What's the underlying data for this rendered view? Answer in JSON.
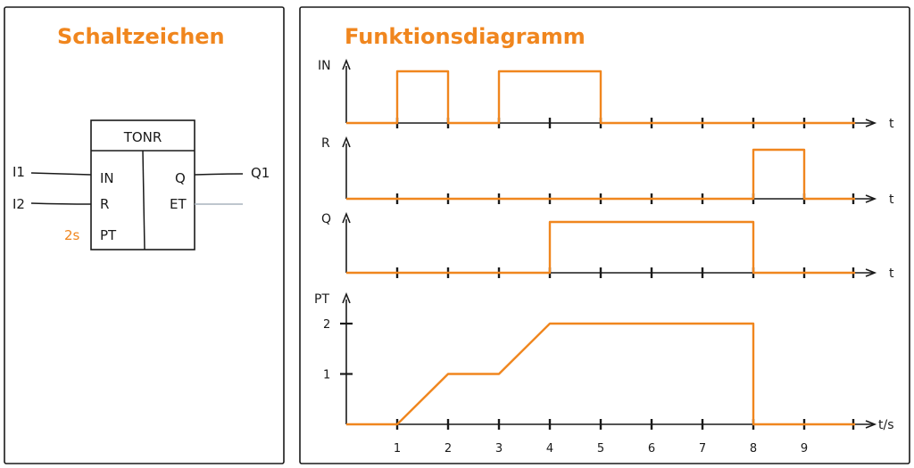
{
  "colors": {
    "accent": "#f0861e",
    "ink": "#1a1a1a",
    "et_line": "#a9b4bd"
  },
  "left_panel": {
    "title": "Schaltzeichen",
    "block": {
      "name": "TONR",
      "inputs": [
        "IN",
        "R",
        "PT"
      ],
      "outputs": [
        "Q",
        "ET"
      ]
    },
    "wires": {
      "in1": "I1",
      "in2": "I2",
      "preset": "2s",
      "out1": "Q1"
    }
  },
  "right_panel": {
    "title": "Funktionsdiagramm"
  },
  "chart_data": {
    "type": "timing",
    "x_unit_label": "t/s",
    "x_ticks": [
      "1",
      "2",
      "3",
      "4",
      "5",
      "6",
      "7",
      "8",
      "9"
    ],
    "y_ticks_pt": [
      "1",
      "2"
    ],
    "signals": [
      {
        "name": "IN",
        "axis_end": "t",
        "points": [
          [
            0,
            0
          ],
          [
            1,
            0
          ],
          [
            1,
            1
          ],
          [
            2,
            1
          ],
          [
            2,
            0
          ],
          [
            3,
            0
          ],
          [
            3,
            1
          ],
          [
            5,
            1
          ],
          [
            5,
            0
          ],
          [
            10,
            0
          ]
        ]
      },
      {
        "name": "R",
        "axis_end": "t",
        "points": [
          [
            0,
            0
          ],
          [
            8,
            0
          ],
          [
            8,
            1
          ],
          [
            9,
            1
          ],
          [
            9,
            0
          ],
          [
            10,
            0
          ]
        ]
      },
      {
        "name": "Q",
        "axis_end": "t",
        "points": [
          [
            0,
            0
          ],
          [
            4,
            0
          ],
          [
            4,
            1
          ],
          [
            8,
            1
          ],
          [
            8,
            0
          ],
          [
            10,
            0
          ]
        ]
      },
      {
        "name": "PT",
        "axis_end": "t/s",
        "points": [
          [
            0,
            0
          ],
          [
            1,
            0
          ],
          [
            2,
            1
          ],
          [
            3,
            1
          ],
          [
            4,
            2
          ],
          [
            8,
            2
          ],
          [
            8,
            0
          ],
          [
            10,
            0
          ]
        ]
      }
    ]
  }
}
